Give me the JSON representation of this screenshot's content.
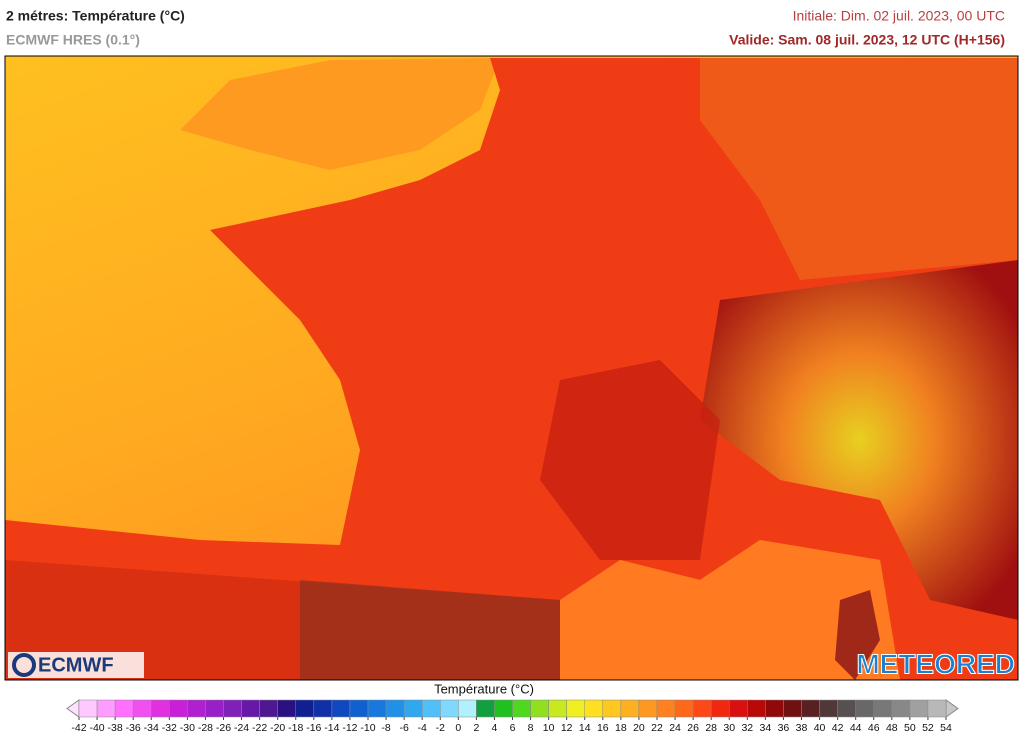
{
  "header": {
    "title": "2 métres: Température (°C)",
    "model": "ECMWF HRES (0.1°)",
    "initial": "Initiale: Dim. 02 juil. 2023, 00 UTC",
    "valid": "Valide: Sam. 08 juil. 2023, 12 UTC (H+156)"
  },
  "logos": {
    "left": "ECMWF",
    "right": "METEORED"
  },
  "legend": {
    "title": "Température (°C)",
    "ticks": [
      -42,
      -40,
      -38,
      -36,
      -34,
      -32,
      -30,
      -28,
      -26,
      -24,
      -22,
      -20,
      -18,
      -16,
      -14,
      -12,
      -10,
      -8,
      -6,
      -4,
      -2,
      0,
      2,
      4,
      6,
      8,
      10,
      12,
      14,
      16,
      18,
      20,
      22,
      24,
      26,
      28,
      30,
      32,
      34,
      36,
      38,
      40,
      42,
      44,
      46,
      48,
      50,
      52,
      54
    ],
    "colors": [
      "#ffc8ff",
      "#ff9cff",
      "#ff70ff",
      "#f050f0",
      "#e030e0",
      "#c820d8",
      "#b020d0",
      "#9820c8",
      "#8020b8",
      "#6818a8",
      "#501890",
      "#2a1080",
      "#102090",
      "#1030a8",
      "#1048c0",
      "#1060d0",
      "#1878e0",
      "#2090e8",
      "#30a8f0",
      "#50c0f8",
      "#80d8ff",
      "#b0f0ff",
      "#10a040",
      "#20c020",
      "#50d820",
      "#90e020",
      "#c8e820",
      "#f0f020",
      "#ffe020",
      "#ffc820",
      "#ffb020",
      "#ff9820",
      "#ff8020",
      "#ff6818",
      "#ff4818",
      "#f02810",
      "#d81010",
      "#b80808",
      "#900808",
      "#701010",
      "#582020",
      "#503838",
      "#585050",
      "#686868",
      "#787878",
      "#888888",
      "#a0a0a0",
      "#b8b8b8"
    ],
    "under_color": "#ffe0ff",
    "over_color": "#c8c8c8"
  }
}
